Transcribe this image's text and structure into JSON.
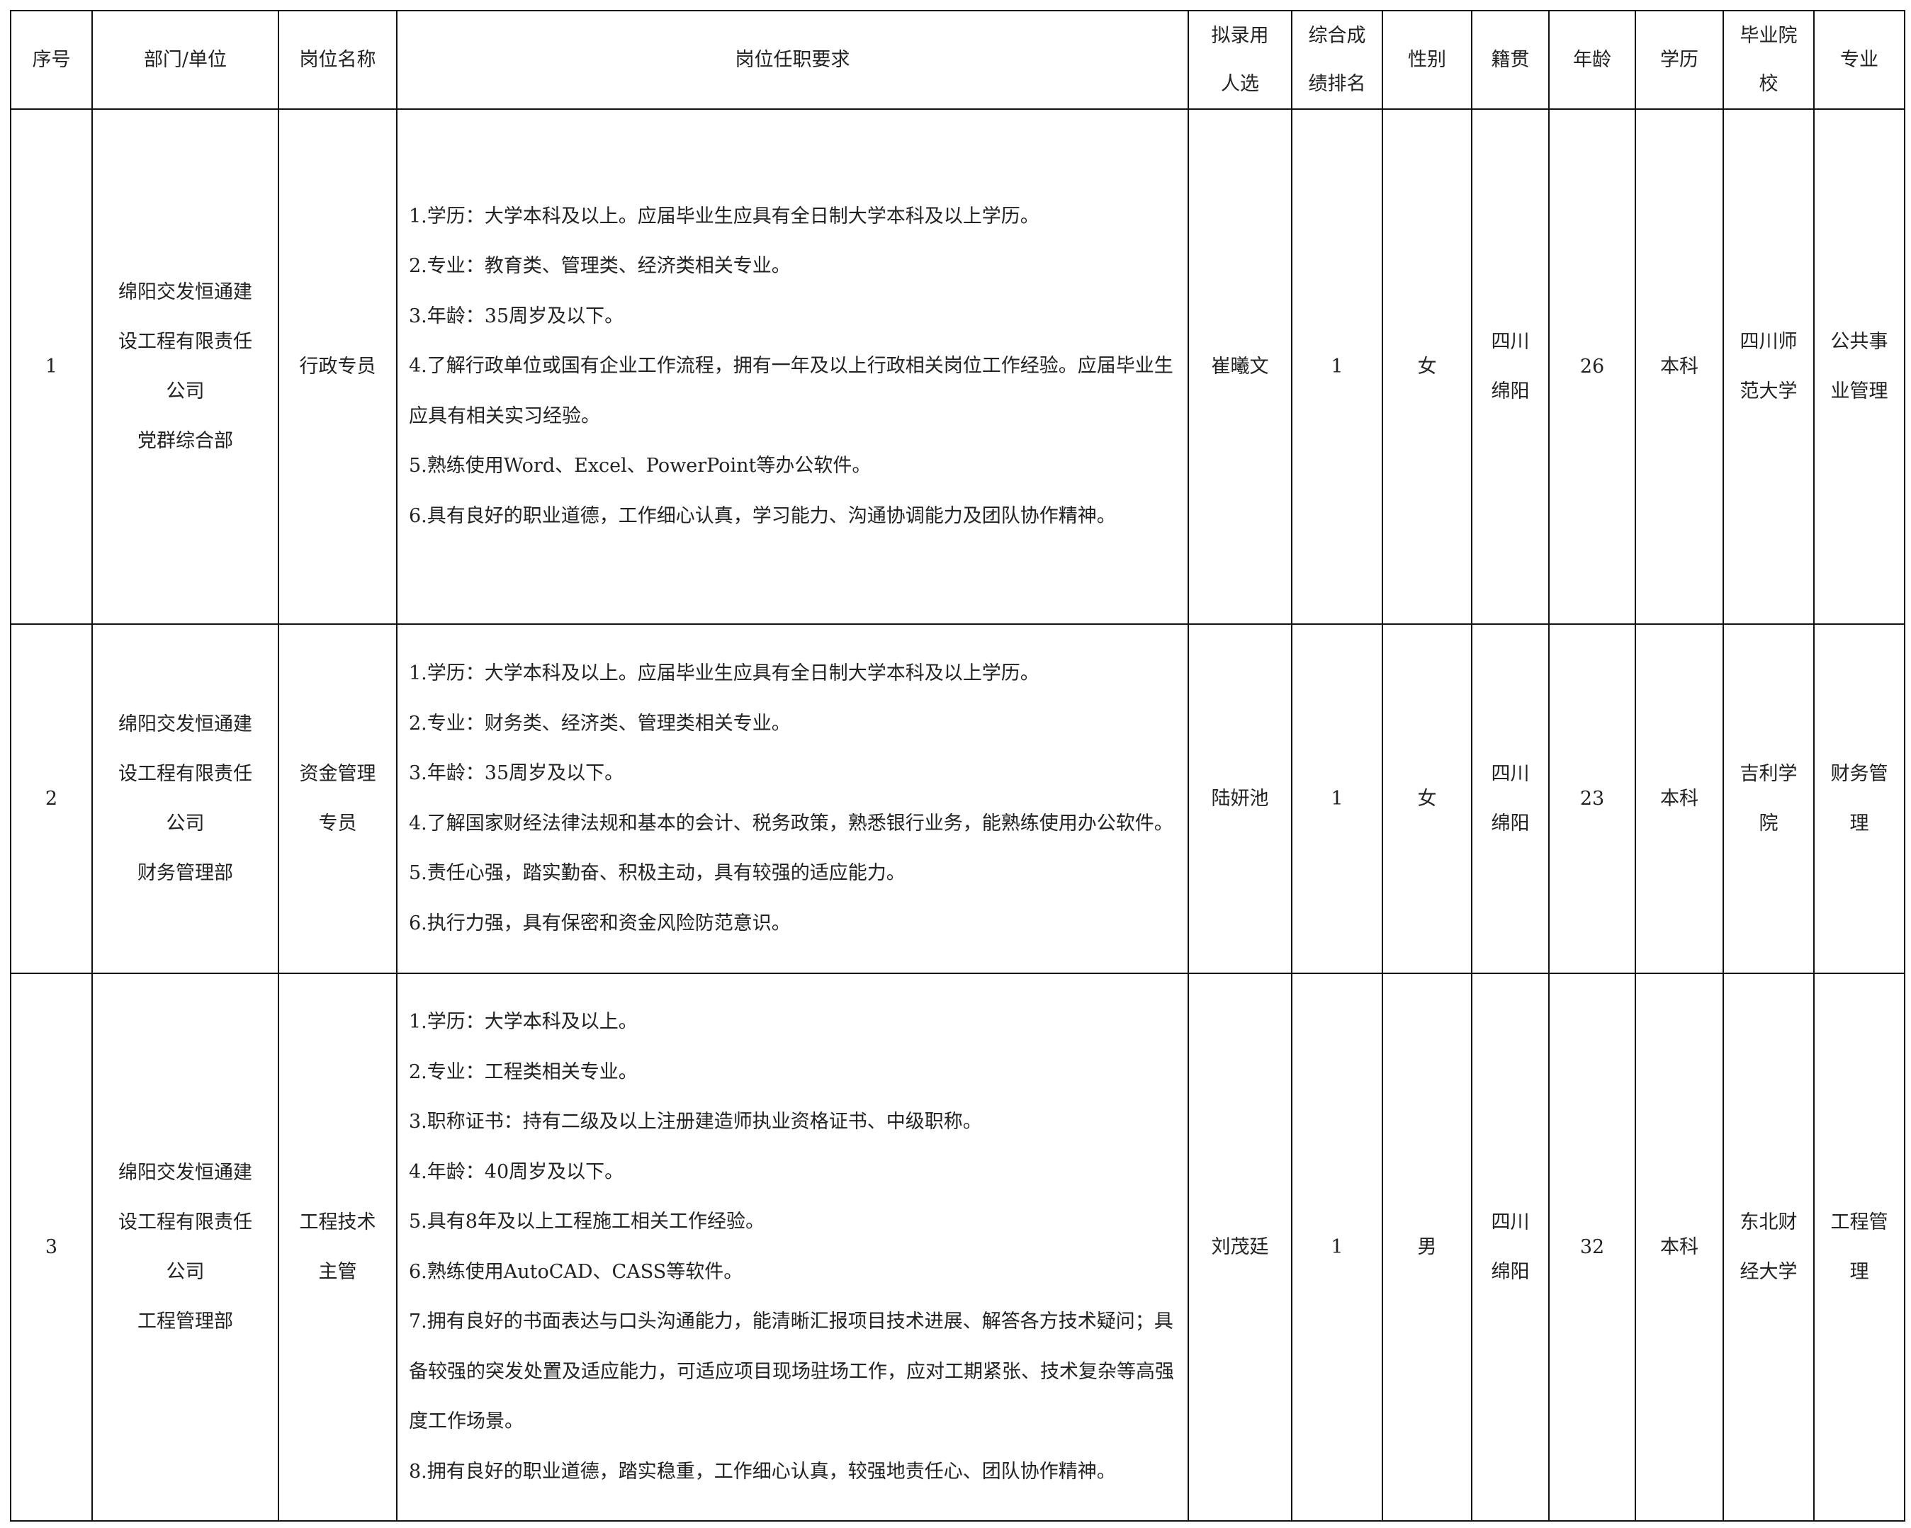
{
  "headers": [
    "序号",
    "部门/单位",
    "岗位名称",
    "岗位任职要求",
    "拟录用人选",
    "综合成绩排名",
    "性别",
    "籍贯",
    "年龄",
    "学历",
    "毕业院校",
    "专业"
  ],
  "header_lines": {
    "candidate": [
      "拟录用",
      "人选"
    ],
    "rank": [
      "综合成",
      "绩排名"
    ],
    "school": [
      "毕业院",
      "校"
    ]
  },
  "rows": [
    {
      "no": "1",
      "dept": [
        "绵阳交发恒通建",
        "设工程有限责任",
        "公司",
        "党群综合部"
      ],
      "position": [
        "行政专员"
      ],
      "requirements": [
        "1.学历：大学本科及以上。应届毕业生应具有全日制大学本科及以上学历。",
        "2.专业：教育类、管理类、经济类相关专业。",
        "3.年龄：35周岁及以下。",
        "4.了解行政单位或国有企业工作流程，拥有一年及以上行政相关岗位工作经验。应届毕业生应具有相关实习经验。",
        "5.熟练使用Word、Excel、PowerPoint等办公软件。",
        "6.具有良好的职业道德，工作细心认真，学习能力、沟通协调能力及团队协作精神。"
      ],
      "candidate": "崔曦文",
      "rank": "1",
      "gender": "女",
      "origin": [
        "四川",
        "绵阳"
      ],
      "age": "26",
      "education": "本科",
      "school": [
        "四川师",
        "范大学"
      ],
      "major": [
        "公共事",
        "业管理"
      ]
    },
    {
      "no": "2",
      "dept": [
        "绵阳交发恒通建",
        "设工程有限责任",
        "公司",
        "财务管理部"
      ],
      "position": [
        "资金管理",
        "专员"
      ],
      "requirements": [
        "1.学历：大学本科及以上。应届毕业生应具有全日制大学本科及以上学历。",
        "2.专业：财务类、经济类、管理类相关专业。",
        "3.年龄：35周岁及以下。",
        "4.了解国家财经法律法规和基本的会计、税务政策，熟悉银行业务，能熟练使用办公软件。",
        "5.责任心强，踏实勤奋、积极主动，具有较强的适应能力。",
        "6.执行力强，具有保密和资金风险防范意识。"
      ],
      "candidate": "陆妍池",
      "rank": "1",
      "gender": "女",
      "origin": [
        "四川",
        "绵阳"
      ],
      "age": "23",
      "education": "本科",
      "school": [
        "吉利学",
        "院"
      ],
      "major": [
        "财务管",
        "理"
      ]
    },
    {
      "no": "3",
      "dept": [
        "绵阳交发恒通建",
        "设工程有限责任",
        "公司",
        "工程管理部"
      ],
      "position": [
        "工程技术",
        "主管"
      ],
      "requirements": [
        "1.学历：大学本科及以上。",
        "2.专业：工程类相关专业。",
        "3.职称证书：持有二级及以上注册建造师执业资格证书、中级职称。",
        "4.年龄：40周岁及以下。",
        "5.具有8年及以上工程施工相关工作经验。",
        "6.熟练使用AutoCAD、CASS等软件。",
        "7.拥有良好的书面表达与口头沟通能力，能清晰汇报项目技术进展、解答各方技术疑问；具备较强的突发处置及适应能力，可适应项目现场驻场工作，应对工期紧张、技术复杂等高强度工作场景。",
        "8.拥有良好的职业道德，踏实稳重，工作细心认真，较强地责任心、团队协作精神。"
      ],
      "candidate": "刘茂廷",
      "rank": "1",
      "gender": "男",
      "origin": [
        "四川",
        "绵阳"
      ],
      "age": "32",
      "education": "本科",
      "school": [
        "东北财",
        "经大学"
      ],
      "major": [
        "工程管",
        "理"
      ]
    }
  ]
}
